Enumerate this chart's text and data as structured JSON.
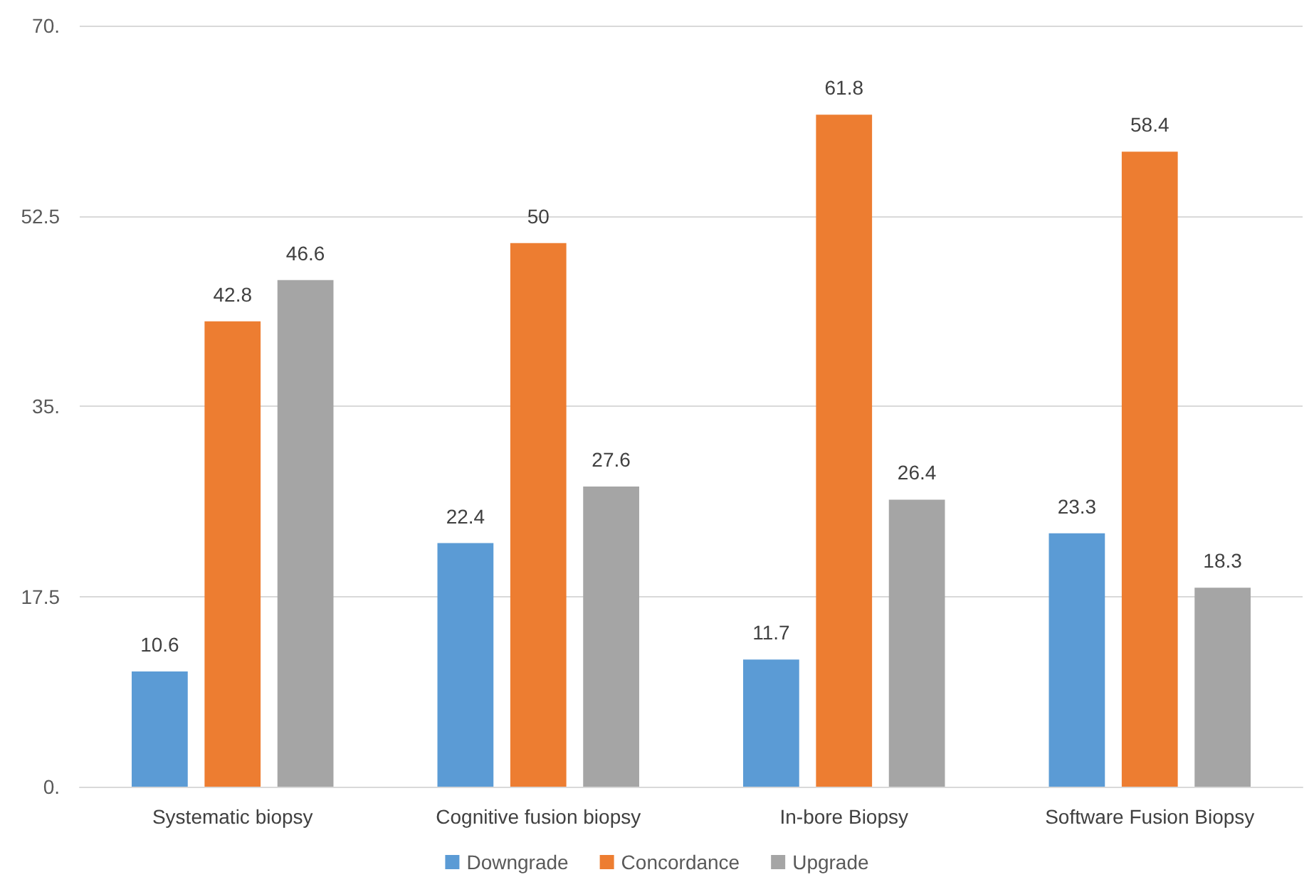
{
  "chart_data": {
    "type": "bar",
    "categories": [
      "Systematic biopsy",
      "Cognitive fusion biopsy",
      "In-bore Biopsy",
      "Software Fusion Biopsy"
    ],
    "series": [
      {
        "name": "Downgrade",
        "color": "#5b9bd5",
        "values": [
          10.6,
          22.4,
          11.7,
          23.3
        ]
      },
      {
        "name": "Concordance",
        "color": "#ed7d31",
        "values": [
          42.8,
          50,
          61.8,
          58.4
        ]
      },
      {
        "name": "Upgrade",
        "color": "#a5a5a5",
        "values": [
          46.6,
          27.6,
          26.4,
          18.3
        ]
      }
    ],
    "ylim": [
      0,
      70
    ],
    "yticks": [
      {
        "value": 0,
        "label": "0."
      },
      17.5,
      {
        "value": 35,
        "label": "35."
      },
      52.5,
      {
        "value": 70,
        "label": "70."
      }
    ],
    "grid": "y",
    "legend": "bottom",
    "data_labels": true
  }
}
